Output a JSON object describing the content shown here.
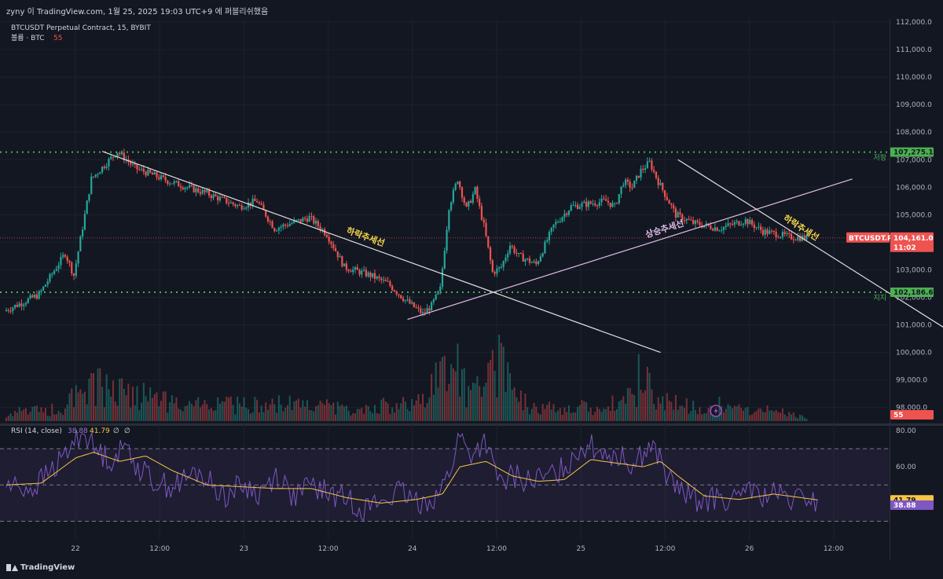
{
  "header": {
    "caption": "zyny 이 TradingView.com, 1월 25, 2025 19:03 UTC+9 에 퍼블리쉬했음",
    "symbol_line": "BTCUSDT Perpetual Contract, 15, BYBIT",
    "volume_label": "볼륨 · BTC",
    "volume_value": "55"
  },
  "price_axis": {
    "ticks": [
      "112,000.0",
      "111,000.0",
      "110,000.0",
      "109,000.0",
      "108,000.0",
      "107,000.0",
      "106,000.0",
      "105,000.0",
      "104,000.0",
      "103,000.0",
      "102,000.0",
      "101,000.0",
      "100,000.0",
      "99,000.0",
      "98,000.0"
    ],
    "resistance_tag": "107,275.1",
    "support_tag": "102,186.6",
    "symbol_tag": "BTCUSDT.P",
    "last_price": "104,161.0",
    "countdown": "11:02",
    "volume_tag": "55"
  },
  "rsi_panel": {
    "title": "RSI (14, close)",
    "rsi_value": "38.88",
    "ma_value": "41.79",
    "extra1": "∅",
    "extra2": "∅",
    "ticks": [
      "80.00",
      "60.00"
    ],
    "tag_ma": "41.79",
    "tag_rsi": "38.88"
  },
  "time_axis": {
    "labels": [
      "22",
      "12:00",
      "23",
      "12:00",
      "24",
      "12:00",
      "25",
      "12:00",
      "26",
      "12:00"
    ]
  },
  "annotations": {
    "resistance": "저항",
    "support": "지지",
    "downtrend1": "하락추세선",
    "uptrend": "상승추세선",
    "downtrend2": "하락추세선"
  },
  "footer": {
    "brand": "TradingView"
  },
  "colors": {
    "background": "#131722",
    "up": "#26a69a",
    "down": "#ef5350",
    "level": "#4caf50",
    "rsi": "#7e57c2",
    "rsi_ma": "#f7c548",
    "annotation": "#f7d94c",
    "uptrend_line": "#e1bee7"
  },
  "chart_data": [
    {
      "type": "candlestick",
      "title": "BTCUSDT Perpetual Contract, 15, BYBIT",
      "x_labels": [
        "22",
        "12:00",
        "23",
        "12:00",
        "24",
        "12:00",
        "25",
        "12:00",
        "26",
        "12:00"
      ],
      "ylim": [
        97800,
        112300
      ],
      "levels": {
        "resistance": 107275.1,
        "support": 102186.6,
        "last": 104161.0
      },
      "path": [
        [
          0,
          101500
        ],
        [
          4,
          102100
        ],
        [
          7,
          103600
        ],
        [
          8,
          102800
        ],
        [
          10,
          106300
        ],
        [
          13,
          107300
        ],
        [
          15,
          106700
        ],
        [
          19,
          106200
        ],
        [
          23,
          105800
        ],
        [
          27,
          105300
        ],
        [
          29,
          105500
        ],
        [
          31,
          104500
        ],
        [
          35,
          104900
        ],
        [
          37,
          104300
        ],
        [
          39,
          103100
        ],
        [
          42,
          102800
        ],
        [
          44,
          102500
        ],
        [
          46,
          101900
        ],
        [
          48,
          101400
        ],
        [
          49,
          101700
        ],
        [
          50,
          102300
        ],
        [
          51,
          105300
        ],
        [
          52,
          106300
        ],
        [
          53,
          105200
        ],
        [
          54,
          105900
        ],
        [
          55,
          104600
        ],
        [
          56,
          102900
        ],
        [
          57,
          103100
        ],
        [
          58,
          103900
        ],
        [
          59,
          103500
        ],
        [
          61,
          103200
        ],
        [
          63,
          104600
        ],
        [
          65,
          105300
        ],
        [
          67,
          105400
        ],
        [
          69,
          105500
        ],
        [
          70,
          105300
        ],
        [
          71,
          106200
        ],
        [
          72,
          106000
        ],
        [
          73,
          106600
        ],
        [
          74,
          106900
        ],
        [
          75,
          106200
        ],
        [
          77,
          105000
        ],
        [
          79,
          104700
        ],
        [
          82,
          104500
        ],
        [
          85,
          104800
        ],
        [
          87,
          104400
        ],
        [
          90,
          104200
        ],
        [
          92,
          104161
        ]
      ],
      "volume": [
        [
          0,
          150
        ],
        [
          6,
          250
        ],
        [
          10,
          700
        ],
        [
          13,
          600
        ],
        [
          20,
          300
        ],
        [
          30,
          350
        ],
        [
          40,
          250
        ],
        [
          47,
          350
        ],
        [
          52,
          1200
        ],
        [
          53,
          500
        ],
        [
          56,
          1100
        ],
        [
          57,
          1400
        ],
        [
          58,
          700
        ],
        [
          60,
          300
        ],
        [
          68,
          250
        ],
        [
          73,
          500
        ],
        [
          74,
          400
        ],
        [
          80,
          250
        ],
        [
          88,
          200
        ],
        [
          92,
          55
        ]
      ],
      "trendlines": [
        {
          "name": "하락추세선",
          "from": [
            11,
            107300
          ],
          "to": [
            75,
            100000
          ]
        },
        {
          "name": "상승추세선",
          "from": [
            46,
            101200
          ],
          "to": [
            97,
            106300
          ]
        },
        {
          "name": "하락추세선",
          "from": [
            77,
            107000
          ],
          "to": [
            108,
            100800
          ]
        }
      ]
    },
    {
      "type": "line",
      "title": "RSI (14, close)",
      "ylim": [
        30,
        80
      ],
      "y_ticks": [
        80,
        60
      ],
      "bands": [
        70,
        50,
        30
      ],
      "series": [
        {
          "name": "RSI",
          "values": [
            [
              0,
              50
            ],
            [
              3,
              48
            ],
            [
              6,
              62
            ],
            [
              8,
              75
            ],
            [
              9,
              80
            ],
            [
              10,
              70
            ],
            [
              12,
              64
            ],
            [
              14,
              72
            ],
            [
              15,
              60
            ],
            [
              17,
              52
            ],
            [
              19,
              49
            ],
            [
              22,
              57
            ],
            [
              25,
              44
            ],
            [
              27,
              50
            ],
            [
              29,
              45
            ],
            [
              31,
              56
            ],
            [
              33,
              43
            ],
            [
              35,
              50
            ],
            [
              37,
              45
            ],
            [
              39,
              43
            ],
            [
              41,
              37
            ],
            [
              43,
              41
            ],
            [
              45,
              46
            ],
            [
              47,
              40
            ],
            [
              49,
              43
            ],
            [
              50,
              48
            ],
            [
              51,
              60
            ],
            [
              52,
              78
            ],
            [
              53,
              66
            ],
            [
              55,
              74
            ],
            [
              56,
              56
            ],
            [
              57,
              50
            ],
            [
              58,
              55
            ],
            [
              60,
              52
            ],
            [
              62,
              54
            ],
            [
              64,
              60
            ],
            [
              66,
              72
            ],
            [
              68,
              70
            ],
            [
              70,
              66
            ],
            [
              72,
              62
            ],
            [
              73,
              67
            ],
            [
              74,
              72
            ],
            [
              75,
              64
            ],
            [
              76,
              52
            ],
            [
              78,
              44
            ],
            [
              80,
              41
            ],
            [
              82,
              43
            ],
            [
              84,
              40
            ],
            [
              85,
              52
            ],
            [
              86,
              43
            ],
            [
              88,
              45
            ],
            [
              90,
              41
            ],
            [
              92,
              43
            ],
            [
              93,
              39
            ]
          ]
        },
        {
          "name": "RSI-based MA",
          "values": [
            [
              0,
              50
            ],
            [
              4,
              51
            ],
            [
              8,
              65
            ],
            [
              10,
              68
            ],
            [
              13,
              63
            ],
            [
              16,
              66
            ],
            [
              19,
              58
            ],
            [
              23,
              50
            ],
            [
              27,
              49
            ],
            [
              31,
              48
            ],
            [
              35,
              48
            ],
            [
              39,
              43
            ],
            [
              43,
              40
            ],
            [
              47,
              42
            ],
            [
              50,
              45
            ],
            [
              52,
              60
            ],
            [
              55,
              63
            ],
            [
              58,
              55
            ],
            [
              61,
              52
            ],
            [
              64,
              53
            ],
            [
              67,
              64
            ],
            [
              70,
              62
            ],
            [
              73,
              60
            ],
            [
              75,
              63
            ],
            [
              77,
              55
            ],
            [
              80,
              44
            ],
            [
              84,
              42
            ],
            [
              88,
              45
            ],
            [
              93,
              41.79
            ]
          ]
        }
      ]
    }
  ]
}
